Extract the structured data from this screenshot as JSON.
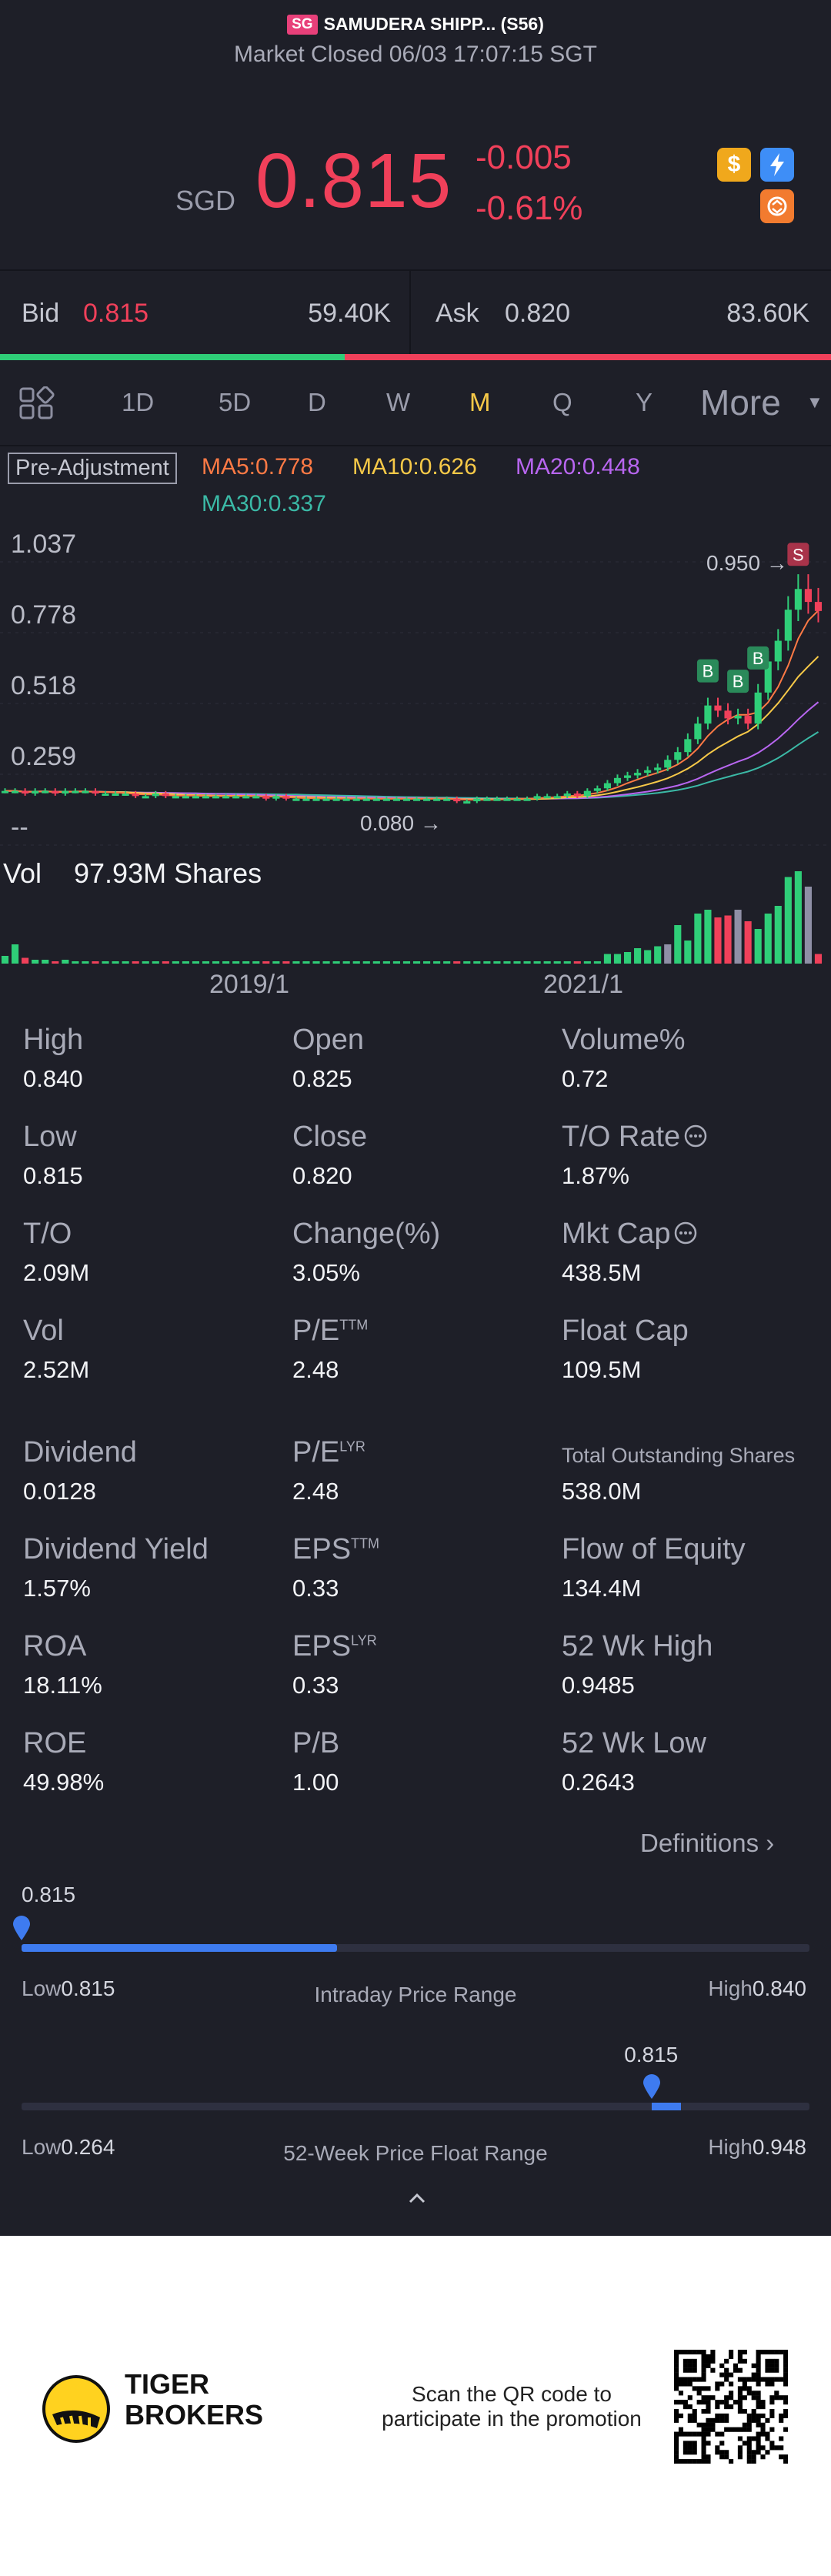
{
  "header": {
    "market_badge": "SG",
    "ticker_title": "SAMUDERA SHIPP... (S56)",
    "market_status": "Market Closed 06/03 17:07:15 SGT",
    "currency": "SGD",
    "price": "0.815",
    "change": "-0.005",
    "change_pct": "-0.61%",
    "icons": [
      "dollar-icon",
      "lightning-icon",
      "exchange-icon"
    ]
  },
  "bidask": {
    "bid_label": "Bid",
    "bid_price": "0.815",
    "bid_volume": "59.40K",
    "ask_label": "Ask",
    "ask_price": "0.820",
    "ask_volume": "83.60K",
    "bid_ratio": 0.415
  },
  "tabs": {
    "items": [
      "1D",
      "5D",
      "D",
      "W",
      "M",
      "Q",
      "Y"
    ],
    "active": "M",
    "more_label": "More"
  },
  "chart_labels": {
    "adjustment": "Pre-Adjustment",
    "ma5": "MA5:0.778",
    "ma10": "MA10:0.626",
    "ma20": "MA20:0.448",
    "ma30": "MA30:0.337",
    "y_ticks": [
      "1.037",
      "0.778",
      "0.518",
      "0.259",
      "--"
    ],
    "high_marker": "0.950",
    "low_marker": "0.080",
    "vol_label": "Vol",
    "vol_value": "97.93M Shares",
    "x_ticks": [
      "2019/1",
      "2021/1"
    ],
    "trade_marks": [
      "B",
      "B",
      "B",
      "S"
    ]
  },
  "chart_data": {
    "type": "candlestick",
    "period": "monthly",
    "y_ticks": [
      1.037,
      0.778,
      0.518,
      0.259
    ],
    "period_high": 0.95,
    "period_low": 0.08,
    "x_ticks": [
      "2019/1",
      "2021/1"
    ],
    "moving_averages": {
      "MA5": 0.778,
      "MA10": 0.626,
      "MA20": 0.448,
      "MA30": 0.337
    },
    "ma_colors": {
      "MA5": "#ff7a45",
      "MA10": "#f7c948",
      "MA20": "#b866f0",
      "MA30": "#3bb9a6"
    },
    "closes": [
      0.12,
      0.12,
      0.11,
      0.12,
      0.12,
      0.11,
      0.12,
      0.12,
      0.12,
      0.11,
      0.11,
      0.11,
      0.11,
      0.1,
      0.1,
      0.11,
      0.1,
      0.1,
      0.1,
      0.1,
      0.1,
      0.1,
      0.1,
      0.1,
      0.1,
      0.1,
      0.09,
      0.1,
      0.09,
      0.09,
      0.09,
      0.09,
      0.09,
      0.09,
      0.09,
      0.09,
      0.09,
      0.09,
      0.09,
      0.09,
      0.09,
      0.09,
      0.09,
      0.09,
      0.09,
      0.08,
      0.08,
      0.09,
      0.09,
      0.09,
      0.09,
      0.09,
      0.09,
      0.1,
      0.1,
      0.1,
      0.11,
      0.1,
      0.12,
      0.13,
      0.15,
      0.17,
      0.18,
      0.19,
      0.2,
      0.21,
      0.24,
      0.27,
      0.32,
      0.38,
      0.45,
      0.43,
      0.4,
      0.41,
      0.38,
      0.5,
      0.62,
      0.7,
      0.82,
      0.9,
      0.85,
      0.815
    ],
    "volumes_m": [
      4,
      10,
      3,
      2,
      2,
      1,
      2,
      1,
      1,
      1,
      1,
      1,
      1,
      1,
      1,
      1,
      1,
      1,
      1,
      1,
      1,
      1,
      1,
      1,
      1,
      1,
      1,
      1,
      1,
      1,
      1,
      1,
      1,
      1,
      1,
      1,
      1,
      1,
      1,
      1,
      1,
      1,
      1,
      1,
      1,
      1,
      1,
      1,
      1,
      1,
      1,
      1,
      1,
      1,
      1,
      1,
      1,
      1,
      1,
      1,
      5,
      5,
      6,
      8,
      7,
      9,
      10,
      20,
      12,
      26,
      28,
      24,
      25,
      28,
      22,
      18,
      26,
      30,
      45,
      48,
      40,
      5
    ],
    "colors": {
      "up": "#2fce78",
      "down": "#f0405a",
      "neutral": "#8f8fa6"
    }
  },
  "metrics": [
    {
      "label": "High",
      "value": "0.840"
    },
    {
      "label": "Open",
      "value": "0.825"
    },
    {
      "label": "Volume%",
      "value": "0.72"
    },
    {
      "label": "Low",
      "value": "0.815"
    },
    {
      "label": "Close",
      "value": "0.820"
    },
    {
      "label": "T/O Rate",
      "value": "1.87%",
      "info": true
    },
    {
      "label": "T/O",
      "value": "2.09M"
    },
    {
      "label": "Change(%)",
      "value": "3.05%"
    },
    {
      "label": "Mkt Cap",
      "value": "438.5M",
      "info": true
    },
    {
      "label": "Vol",
      "value": "2.52M"
    },
    {
      "label": "P/E",
      "sup": "TTM",
      "value": "2.48"
    },
    {
      "label": "Float Cap",
      "value": "109.5M"
    },
    {
      "label": "Dividend",
      "value": "0.0128"
    },
    {
      "label": "P/E",
      "sup": "LYR",
      "value": "2.48"
    },
    {
      "label": "Total Outstanding Shares",
      "value": "538.0M",
      "small": true
    },
    {
      "label": "Dividend Yield",
      "value": "1.57%"
    },
    {
      "label": "EPS",
      "sup": "TTM",
      "value": "0.33"
    },
    {
      "label": "Flow of Equity",
      "value": "134.4M"
    },
    {
      "label": "ROA",
      "value": "18.11%"
    },
    {
      "label": "EPS",
      "sup": "LYR",
      "value": "0.33"
    },
    {
      "label": "52 Wk High",
      "value": "0.9485"
    },
    {
      "label": "ROE",
      "value": "49.98%"
    },
    {
      "label": "P/B",
      "value": "1.00"
    },
    {
      "label": "52 Wk Low",
      "value": "0.2643"
    }
  ],
  "definitions_label": "Definitions",
  "intraday": {
    "current": "0.815",
    "low_label": "Low",
    "low": "0.815",
    "high_label": "High",
    "high": "0.840",
    "title": "Intraday Price Range",
    "position": 0.0,
    "fill": 0.4
  },
  "week52": {
    "current": "0.815",
    "low_label": "Low",
    "low": "0.264",
    "high_label": "High",
    "high": "0.948",
    "title": "52-Week Price Float Range",
    "position": 0.8
  },
  "footer": {
    "brand_line1": "TIGER",
    "brand_line2": "BROKERS",
    "promo_line1": "Scan the QR code to",
    "promo_line2": "participate in the promotion"
  }
}
